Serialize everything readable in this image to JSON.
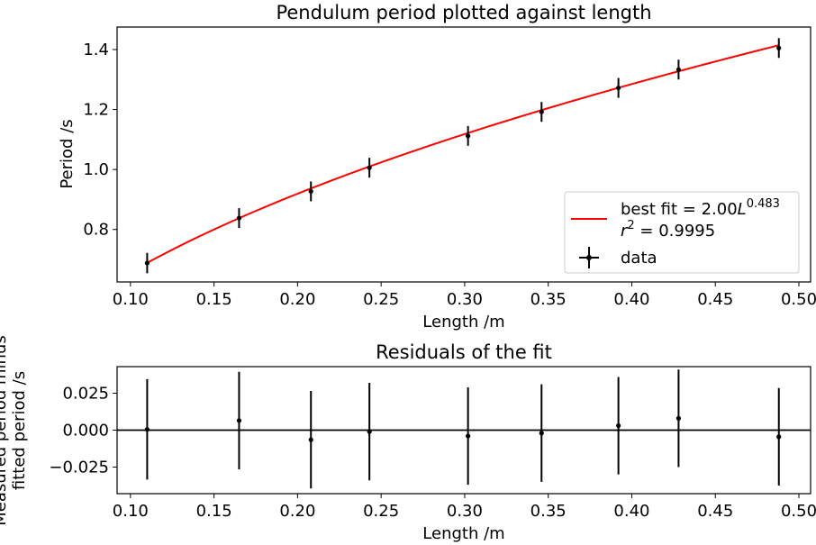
{
  "colors": {
    "fit_line": "#ff0000",
    "data_points": "#000000",
    "zero_line": "#000000",
    "background": "#ffffff"
  },
  "chart_data": [
    {
      "type": "scatter",
      "title": "Pendulum period plotted against length",
      "xlabel": "Length /m",
      "ylabel": "Period /s",
      "xlim": [
        0.092,
        0.507
      ],
      "ylim": [
        0.625,
        1.475
      ],
      "xticks": [
        0.1,
        0.15,
        0.2,
        0.25,
        0.3,
        0.35,
        0.4,
        0.45,
        0.5
      ],
      "xtick_labels": [
        "0.10",
        "0.15",
        "0.20",
        "0.25",
        "0.30",
        "0.35",
        "0.40",
        "0.45",
        "0.50"
      ],
      "yticks": [
        0.8,
        1.0,
        1.2,
        1.4
      ],
      "ytick_labels": [
        "0.8",
        "1.0",
        "1.2",
        "1.4"
      ],
      "grid": false,
      "legend_position": "lower-right",
      "series": [
        {
          "name": "data",
          "x": [
            0.11,
            0.165,
            0.208,
            0.243,
            0.302,
            0.346,
            0.392,
            0.428,
            0.488
          ],
          "y": [
            0.688,
            0.838,
            0.927,
            1.006,
            1.112,
            1.192,
            1.272,
            1.333,
            1.405
          ],
          "yerr": [
            0.034,
            0.033,
            0.033,
            0.033,
            0.033,
            0.033,
            0.033,
            0.033,
            0.033
          ],
          "xerr": [
            0.001,
            0.001,
            0.001,
            0.001,
            0.001,
            0.001,
            0.001,
            0.001,
            0.001
          ]
        }
      ],
      "fit": {
        "coefficient": 2.0,
        "exponent": 0.483,
        "x_range": [
          0.11,
          0.488
        ],
        "legend_label_prefix": "best fit = 2.00",
        "legend_label_var": "L",
        "legend_label_exp": "0.483",
        "r2_label_var": "r",
        "r2_label_exp": "2",
        "r2_label_value": " = 0.9995"
      }
    },
    {
      "type": "scatter",
      "title": "Residuals of the fit",
      "xlabel": "Length /m",
      "ylabel_line1": "Measured period minus",
      "ylabel_line2": "fitted period /s",
      "xlim": [
        0.092,
        0.507
      ],
      "ylim": [
        -0.043,
        0.043
      ],
      "xticks": [
        0.1,
        0.15,
        0.2,
        0.25,
        0.3,
        0.35,
        0.4,
        0.45,
        0.5
      ],
      "xtick_labels": [
        "0.10",
        "0.15",
        "0.20",
        "0.25",
        "0.30",
        "0.35",
        "0.40",
        "0.45",
        "0.50"
      ],
      "yticks": [
        0.025,
        0.0,
        -0.025
      ],
      "ytick_labels": [
        "0.025",
        "0.000",
        "−0.025"
      ],
      "grid": false,
      "zero_line": 0.0,
      "series": [
        {
          "x": [
            0.11,
            0.165,
            0.208,
            0.243,
            0.302,
            0.346,
            0.392,
            0.428,
            0.488
          ],
          "y": [
            0.0005,
            0.0065,
            -0.0065,
            -0.001,
            -0.004,
            -0.002,
            0.003,
            0.008,
            -0.0045
          ],
          "yerr": [
            0.034,
            0.033,
            0.033,
            0.033,
            0.033,
            0.033,
            0.033,
            0.033,
            0.033
          ]
        }
      ]
    }
  ]
}
